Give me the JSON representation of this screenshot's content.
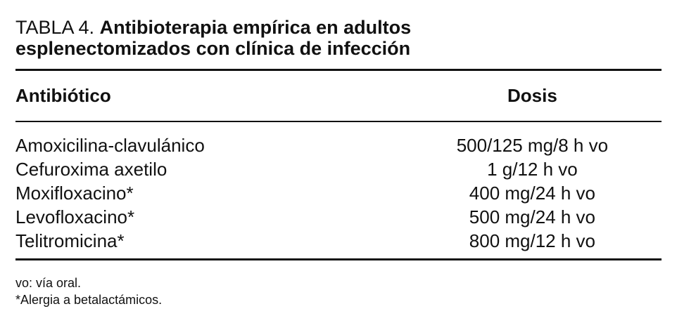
{
  "header": {
    "label": "TABLA 4.",
    "title": "Antibioterapia empírica en adultos esplenectomizados con clínica de infección"
  },
  "table": {
    "columns": [
      "Antibiótico",
      "Dosis"
    ],
    "rows": [
      [
        "Amoxicilina-clavulánico",
        "500/125 mg/8 h vo"
      ],
      [
        "Cefuroxima axetilo",
        "1 g/12 h vo"
      ],
      [
        "Moxifloxacino*",
        "400 mg/24 h vo"
      ],
      [
        "Levofloxacino*",
        "500 mg/24 h vo"
      ],
      [
        "Telitromicina*",
        "800 mg/12 h vo"
      ]
    ]
  },
  "footnotes": [
    "vo: vía oral.",
    "*Alergia a betalactámicos."
  ]
}
